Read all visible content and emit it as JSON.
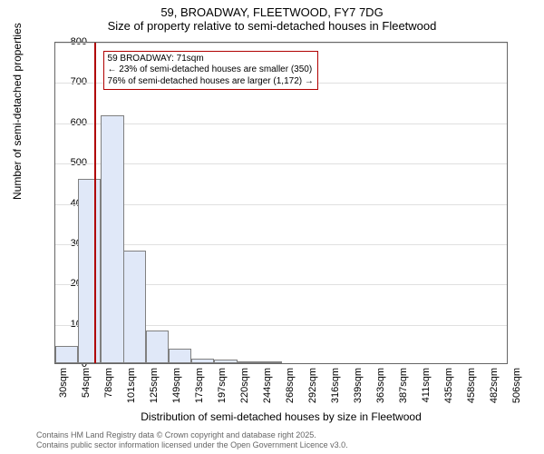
{
  "chart": {
    "type": "histogram",
    "title_line1": "59, BROADWAY, FLEETWOOD, FY7 7DG",
    "title_line2": "Size of property relative to semi-detached houses in Fleetwood",
    "title_fontsize": 13,
    "xlabel": "Distribution of semi-detached houses by size in Fleetwood",
    "ylabel": "Number of semi-detached properties",
    "label_fontsize": 12,
    "tick_fontsize": 11,
    "background_color": "#ffffff",
    "grid_color": "#e0e0e0",
    "border_color": "#666666",
    "ylim": [
      0,
      800
    ],
    "yticks": [
      0,
      100,
      200,
      300,
      400,
      500,
      600,
      700,
      800
    ],
    "xlim": [
      30,
      506
    ],
    "xticks": [
      30,
      54,
      78,
      101,
      125,
      149,
      173,
      197,
      220,
      244,
      268,
      292,
      316,
      339,
      363,
      387,
      411,
      435,
      458,
      482,
      506
    ],
    "xtick_suffix": "sqm",
    "bar_color": "#e0e8f8",
    "bar_border_color": "#808080",
    "bin_width_sqm": 24,
    "bins": [
      {
        "x": 30,
        "count": 42
      },
      {
        "x": 54,
        "count": 458
      },
      {
        "x": 78,
        "count": 615
      },
      {
        "x": 101,
        "count": 280
      },
      {
        "x": 125,
        "count": 82
      },
      {
        "x": 149,
        "count": 35
      },
      {
        "x": 173,
        "count": 12
      },
      {
        "x": 197,
        "count": 10
      },
      {
        "x": 220,
        "count": 5
      },
      {
        "x": 244,
        "count": 3
      },
      {
        "x": 268,
        "count": 0
      },
      {
        "x": 292,
        "count": 0
      },
      {
        "x": 316,
        "count": 0
      },
      {
        "x": 339,
        "count": 0
      },
      {
        "x": 363,
        "count": 0
      },
      {
        "x": 387,
        "count": 0
      },
      {
        "x": 411,
        "count": 0
      },
      {
        "x": 435,
        "count": 0
      },
      {
        "x": 458,
        "count": 0
      },
      {
        "x": 482,
        "count": 0
      }
    ],
    "marker": {
      "x_sqm": 71,
      "color": "#b00000",
      "line_width": 2
    },
    "annotation": {
      "line1": "59 BROADWAY: 71sqm",
      "line2": "← 23% of semi-detached houses are smaller (350)",
      "line3": "76% of semi-detached houses are larger (1,172) →",
      "border_color": "#b00000",
      "background_color": "#ffffff",
      "fontsize": 10,
      "x_sqm_anchor": 80,
      "y_top_count": 780
    }
  },
  "footer": {
    "line1": "Contains HM Land Registry data © Crown copyright and database right 2025.",
    "line2": "Contains public sector information licensed under the Open Government Licence v3.0.",
    "color": "#666666",
    "fontsize": 9
  }
}
